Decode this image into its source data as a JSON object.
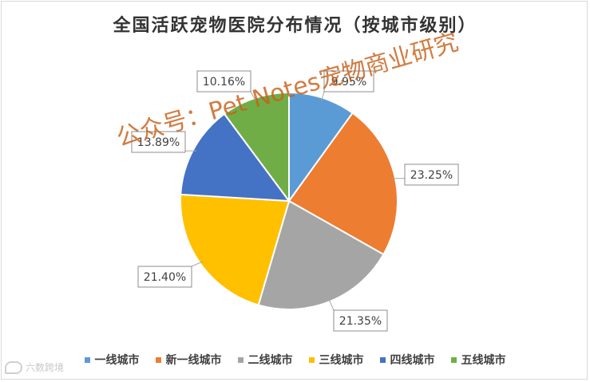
{
  "chart_data": {
    "type": "pie",
    "title": "全国活跃宠物医院分布情况（按城市级别）",
    "categories": [
      "一线城市",
      "新一线城市",
      "二线城市",
      "三线城市",
      "四线城市",
      "五线城市"
    ],
    "values": [
      9.95,
      23.25,
      21.35,
      21.4,
      13.89,
      10.16
    ],
    "data_labels": [
      "9.95%",
      "23.25%",
      "21.35%",
      "21.40%",
      "13.89%",
      "10.16%"
    ],
    "colors": [
      "#5b9bd5",
      "#ed7d31",
      "#a5a5a5",
      "#ffc000",
      "#4472c4",
      "#70ad47"
    ],
    "legend_position": "bottom"
  },
  "watermark": {
    "text": "公众号：Pet Notes宠物商业研究"
  },
  "logo": {
    "text": "六数跨境"
  }
}
